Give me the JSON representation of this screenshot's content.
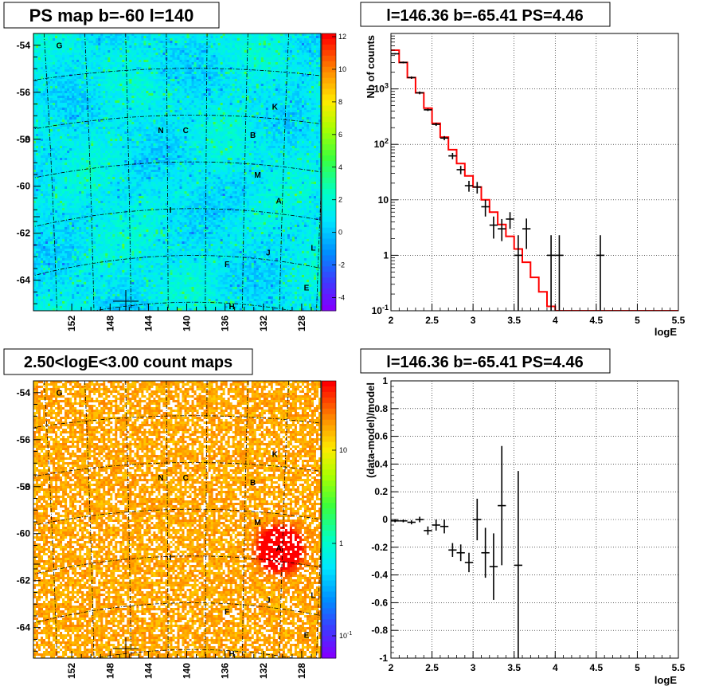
{
  "panels": {
    "ps_map": {
      "title": "PS map b=-60 l=140",
      "xticks": [
        "152",
        "148",
        "144",
        "140",
        "136",
        "132",
        "128"
      ],
      "yticks": [
        "-54",
        "-56",
        "-58",
        "-60",
        "-62",
        "-64"
      ],
      "colorbar_ticks": [
        "12",
        "10",
        "8",
        "6",
        "4",
        "2",
        "0",
        "-2",
        "-4"
      ],
      "color_range": [
        -5,
        12
      ]
    },
    "count_map": {
      "title": "2.50<logE<3.00 count maps",
      "xticks": [
        "152",
        "148",
        "144",
        "140",
        "136",
        "132",
        "128"
      ],
      "yticks": [
        "-54",
        "-56",
        "-58",
        "-60",
        "-62",
        "-64"
      ],
      "colorbar_ticks": [
        "10",
        "1",
        "10-1"
      ],
      "colorbar_scale": "log"
    }
  },
  "source_labels": [
    "G",
    "K",
    "N",
    "C",
    "B",
    "D",
    "M",
    "A",
    "I",
    "L",
    "J",
    "F",
    "E",
    "H"
  ],
  "source_positions": {
    "G": [
      153.3,
      -54.1
    ],
    "K": [
      130.8,
      -56.7
    ],
    "N": [
      142.7,
      -57.7
    ],
    "C": [
      140.1,
      -57.7
    ],
    "B": [
      133.1,
      -57.9
    ],
    "D": [
      156.6,
      -58.1
    ],
    "M": [
      132.6,
      -59.6
    ],
    "A": [
      130.4,
      -60.7
    ],
    "I": [
      141.7,
      -61.1
    ],
    "L": [
      126.8,
      -62.7
    ],
    "J": [
      131.5,
      -62.9
    ],
    "F": [
      135.8,
      -63.4
    ],
    "E": [
      127.5,
      -64.4
    ],
    "H": [
      135.3,
      -65.2
    ]
  },
  "chart_data": [
    {
      "type": "heatmap",
      "title": "PS map b=-60 l=140",
      "xlabel": "",
      "ylabel": "",
      "xlim": [
        156,
        126
      ],
      "ylim": [
        -65.4,
        -53.6
      ],
      "colorbar": {
        "min": -5,
        "max": 12,
        "ticks": [
          12,
          10,
          8,
          6,
          4,
          2,
          0,
          -2,
          -4
        ]
      },
      "marker": {
        "l": 146.36,
        "b": -65.41
      }
    },
    {
      "type": "line",
      "title": "l=146.36 b=-65.41 PS=4.46",
      "xlabel": "logE",
      "ylabel": "Nb of counts",
      "xlim": [
        2,
        5.5
      ],
      "ylim": [
        0.1,
        10000
      ],
      "yscale": "log",
      "xticks": [
        "2",
        "2.5",
        "3",
        "3.5",
        "4",
        "4.5",
        "5",
        "5.5"
      ],
      "yticks": [
        "10-1",
        "1",
        "10",
        "10^2",
        "10^3"
      ],
      "grid": true,
      "model": {
        "name": "model",
        "color": "#ff0000",
        "bin_width": 0.1,
        "x": [
          2.0,
          2.1,
          2.2,
          2.3,
          2.4,
          2.5,
          2.6,
          2.7,
          2.8,
          2.9,
          3.0,
          3.1,
          3.2,
          3.3,
          3.4,
          3.5,
          3.6,
          3.7,
          3.8,
          3.9,
          4.0,
          4.1,
          4.2,
          4.3,
          4.4,
          4.5,
          4.6,
          4.7,
          4.8,
          4.9,
          5.0,
          5.1,
          5.2,
          5.3,
          5.4
        ],
        "y": [
          5000,
          3000,
          1600,
          850,
          450,
          240,
          135,
          80,
          45,
          27,
          17,
          10,
          6,
          3.6,
          2.2,
          1.3,
          0.75,
          0.4,
          0.22,
          0.12,
          0.1,
          0.1,
          0.1,
          0.1,
          0.1,
          0.1,
          0.1,
          0.1,
          0.1,
          0.1,
          0.1,
          0.1,
          0.1,
          0.1,
          0.1
        ]
      },
      "data": {
        "name": "data",
        "color": "#000000",
        "points": [
          {
            "x": 2.05,
            "y": 4300,
            "lo": 4170,
            "hi": 4430
          },
          {
            "x": 2.15,
            "y": 3000,
            "lo": 2890,
            "hi": 3110
          },
          {
            "x": 2.25,
            "y": 1600,
            "lo": 1520,
            "hi": 1680
          },
          {
            "x": 2.35,
            "y": 850,
            "lo": 800,
            "hi": 900
          },
          {
            "x": 2.45,
            "y": 420,
            "lo": 400,
            "hi": 440
          },
          {
            "x": 2.55,
            "y": 230,
            "lo": 215,
            "hi": 245
          },
          {
            "x": 2.65,
            "y": 130,
            "lo": 119,
            "hi": 141
          },
          {
            "x": 2.75,
            "y": 62,
            "lo": 54,
            "hi": 70
          },
          {
            "x": 2.85,
            "y": 35,
            "lo": 29,
            "hi": 41
          },
          {
            "x": 2.95,
            "y": 18,
            "lo": 14,
            "hi": 22
          },
          {
            "x": 3.05,
            "y": 17,
            "lo": 13,
            "hi": 21
          },
          {
            "x": 3.15,
            "y": 7.5,
            "lo": 5,
            "hi": 10
          },
          {
            "x": 3.25,
            "y": 3.5,
            "lo": 2,
            "hi": 5
          },
          {
            "x": 3.35,
            "y": 3,
            "lo": 1.8,
            "hi": 4.5
          },
          {
            "x": 3.45,
            "y": 4.5,
            "lo": 3,
            "hi": 6
          },
          {
            "x": 3.55,
            "y": 1,
            "lo": 0.1,
            "hi": 2.3
          },
          {
            "x": 3.65,
            "y": 3,
            "lo": 1.3,
            "hi": 4.6
          },
          {
            "x": 3.95,
            "y": 1,
            "lo": 0.1,
            "hi": 2.3
          },
          {
            "x": 4.05,
            "y": 1,
            "lo": 0.1,
            "hi": 2.3
          },
          {
            "x": 4.55,
            "y": 1,
            "lo": 0.1,
            "hi": 2.3
          }
        ]
      }
    },
    {
      "type": "heatmap",
      "title": "2.50<logE<3.00 count maps",
      "xlabel": "",
      "ylabel": "",
      "xlim": [
        156,
        126
      ],
      "ylim": [
        -65.4,
        -53.6
      ],
      "colorbar": {
        "scale": "log",
        "ticks": [
          "10",
          "1",
          "10-1"
        ]
      },
      "hotspot": {
        "label": "A",
        "l": 130.4,
        "b": -60.7
      },
      "marker": {
        "l": 146.36,
        "b": -65.41
      }
    },
    {
      "type": "scatter",
      "title": "l=146.36 b=-65.41 PS=4.46",
      "xlabel": "logE",
      "ylabel": "(data-model)/model",
      "xlim": [
        2,
        5.5
      ],
      "ylim": [
        -1,
        1
      ],
      "xticks": [
        "2",
        "2.5",
        "3",
        "3.5",
        "4",
        "4.5",
        "5",
        "5.5"
      ],
      "yticks": [
        "-1",
        "-0.8",
        "-0.6",
        "-0.4",
        "-0.2",
        "0",
        "0.2",
        "0.4",
        "0.6",
        "0.8",
        "1"
      ],
      "grid": true,
      "points": [
        {
          "x": 2.05,
          "y": -0.01,
          "err": 0.01
        },
        {
          "x": 2.15,
          "y": -0.01,
          "err": 0.01
        },
        {
          "x": 2.25,
          "y": -0.02,
          "err": 0.015
        },
        {
          "x": 2.35,
          "y": 0.0,
          "err": 0.02
        },
        {
          "x": 2.45,
          "y": -0.08,
          "err": 0.03
        },
        {
          "x": 2.55,
          "y": -0.04,
          "err": 0.04
        },
        {
          "x": 2.65,
          "y": -0.05,
          "err": 0.05
        },
        {
          "x": 2.75,
          "y": -0.22,
          "err": 0.05
        },
        {
          "x": 2.85,
          "y": -0.24,
          "err": 0.06
        },
        {
          "x": 2.95,
          "y": -0.31,
          "err": 0.07
        },
        {
          "x": 3.05,
          "y": 0.0,
          "err": 0.15
        },
        {
          "x": 3.15,
          "y": -0.24,
          "err": 0.18
        },
        {
          "x": 3.25,
          "y": -0.34,
          "err": 0.24
        },
        {
          "x": 3.35,
          "y": 0.1,
          "err": 0.43
        },
        {
          "x": 3.55,
          "y": -0.33,
          "err": 0.68
        }
      ]
    }
  ]
}
